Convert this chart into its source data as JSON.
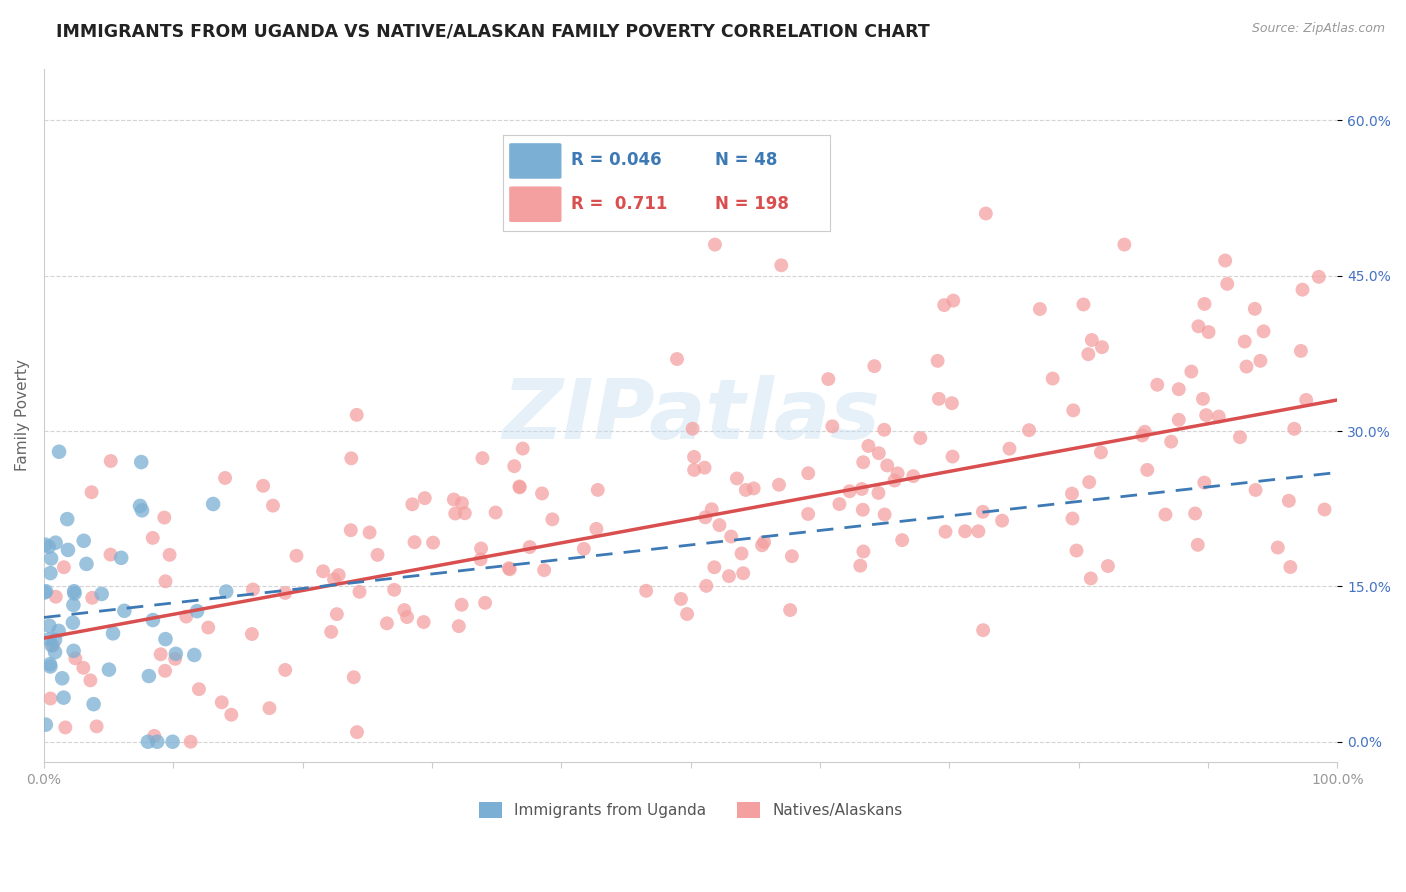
{
  "title": "IMMIGRANTS FROM UGANDA VS NATIVE/ALASKAN FAMILY POVERTY CORRELATION CHART",
  "source": "Source: ZipAtlas.com",
  "ylabel": "Family Poverty",
  "xlim": [
    0,
    100
  ],
  "ylim": [
    -2,
    65
  ],
  "ytick_vals": [
    0,
    15,
    30,
    45,
    60
  ],
  "yticklabels": [
    "0.0%",
    "15.0%",
    "30.0%",
    "45.0%",
    "60.0%"
  ],
  "xtick_vals": [
    0,
    10,
    20,
    30,
    40,
    50,
    60,
    70,
    80,
    90,
    100
  ],
  "xticklabels": [
    "0.0%",
    "",
    "",
    "",
    "",
    "",
    "",
    "",
    "",
    "",
    "100.0%"
  ],
  "blue_color": "#7bafd4",
  "pink_color": "#f4a0a0",
  "blue_line_color": "#3d7ab5",
  "pink_line_color": "#d94f4f",
  "r_blue": "0.046",
  "n_blue": "48",
  "r_pink": "0.711",
  "n_pink": "198",
  "watermark_text": "ZIPatlas",
  "background_color": "#ffffff",
  "grid_color": "#d0d0d0",
  "title_color": "#222222",
  "tick_color_x": "#999999",
  "tick_color_y": "#4472c4",
  "source_color": "#999999",
  "blue_line_start_y": 12.0,
  "blue_line_end_y": 26.0,
  "pink_line_start_y": 10.0,
  "pink_line_end_y": 33.0
}
